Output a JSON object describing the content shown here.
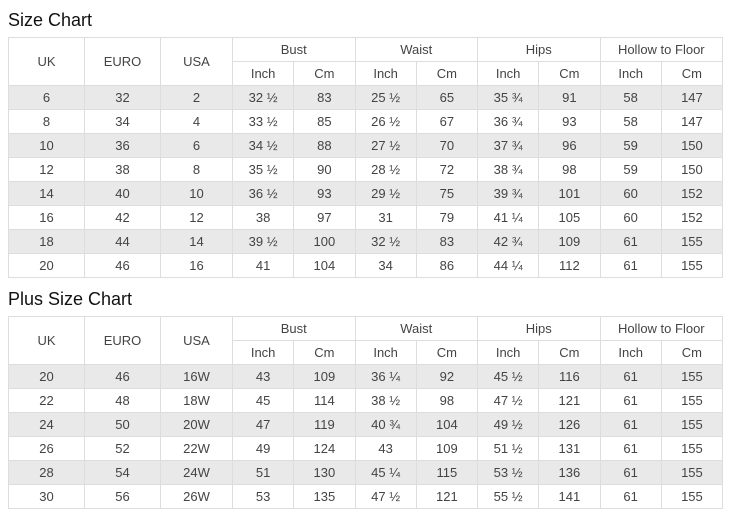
{
  "colors": {
    "stripe_row_bg": "#e9e9e9",
    "row_bg": "#ffffff",
    "table_border": "#dddddd",
    "cell_text": "#444444",
    "title_text": "#111111",
    "page_bg": "#ffffff"
  },
  "chart_data": [
    {
      "type": "table",
      "title": "Size Chart",
      "plain_columns": [
        "UK",
        "EURO",
        "USA"
      ],
      "grouped_columns": [
        {
          "label": "Bust",
          "sub": [
            "Inch",
            "Cm"
          ]
        },
        {
          "label": "Waist",
          "sub": [
            "Inch",
            "Cm"
          ]
        },
        {
          "label": "Hips",
          "sub": [
            "Inch",
            "Cm"
          ]
        },
        {
          "label": "Hollow to Floor",
          "sub": [
            "Inch",
            "Cm"
          ]
        }
      ],
      "rows": [
        [
          "6",
          "32",
          "2",
          "32 ½",
          "83",
          "25 ½",
          "65",
          "35 ¾",
          "91",
          "58",
          "147"
        ],
        [
          "8",
          "34",
          "4",
          "33 ½",
          "85",
          "26 ½",
          "67",
          "36 ¾",
          "93",
          "58",
          "147"
        ],
        [
          "10",
          "36",
          "6",
          "34 ½",
          "88",
          "27 ½",
          "70",
          "37 ¾",
          "96",
          "59",
          "150"
        ],
        [
          "12",
          "38",
          "8",
          "35 ½",
          "90",
          "28 ½",
          "72",
          "38 ¾",
          "98",
          "59",
          "150"
        ],
        [
          "14",
          "40",
          "10",
          "36 ½",
          "93",
          "29 ½",
          "75",
          "39 ¾",
          "101",
          "60",
          "152"
        ],
        [
          "16",
          "42",
          "12",
          "38",
          "97",
          "31",
          "79",
          "41 ¼",
          "105",
          "60",
          "152"
        ],
        [
          "18",
          "44",
          "14",
          "39 ½",
          "100",
          "32 ½",
          "83",
          "42 ¾",
          "109",
          "61",
          "155"
        ],
        [
          "20",
          "46",
          "16",
          "41",
          "104",
          "34",
          "86",
          "44 ¼",
          "112",
          "61",
          "155"
        ]
      ]
    },
    {
      "type": "table",
      "title": "Plus Size Chart",
      "plain_columns": [
        "UK",
        "EURO",
        "USA"
      ],
      "grouped_columns": [
        {
          "label": "Bust",
          "sub": [
            "Inch",
            "Cm"
          ]
        },
        {
          "label": "Waist",
          "sub": [
            "Inch",
            "Cm"
          ]
        },
        {
          "label": "Hips",
          "sub": [
            "Inch",
            "Cm"
          ]
        },
        {
          "label": "Hollow to Floor",
          "sub": [
            "Inch",
            "Cm"
          ]
        }
      ],
      "rows": [
        [
          "20",
          "46",
          "16W",
          "43",
          "109",
          "36 ¼",
          "92",
          "45 ½",
          "116",
          "61",
          "155"
        ],
        [
          "22",
          "48",
          "18W",
          "45",
          "114",
          "38 ½",
          "98",
          "47 ½",
          "121",
          "61",
          "155"
        ],
        [
          "24",
          "50",
          "20W",
          "47",
          "119",
          "40 ¾",
          "104",
          "49 ½",
          "126",
          "61",
          "155"
        ],
        [
          "26",
          "52",
          "22W",
          "49",
          "124",
          "43",
          "109",
          "51 ½",
          "131",
          "61",
          "155"
        ],
        [
          "28",
          "54",
          "24W",
          "51",
          "130",
          "45 ¼",
          "115",
          "53 ½",
          "136",
          "61",
          "155"
        ],
        [
          "30",
          "56",
          "26W",
          "53",
          "135",
          "47 ½",
          "121",
          "55 ½",
          "141",
          "61",
          "155"
        ]
      ]
    }
  ]
}
